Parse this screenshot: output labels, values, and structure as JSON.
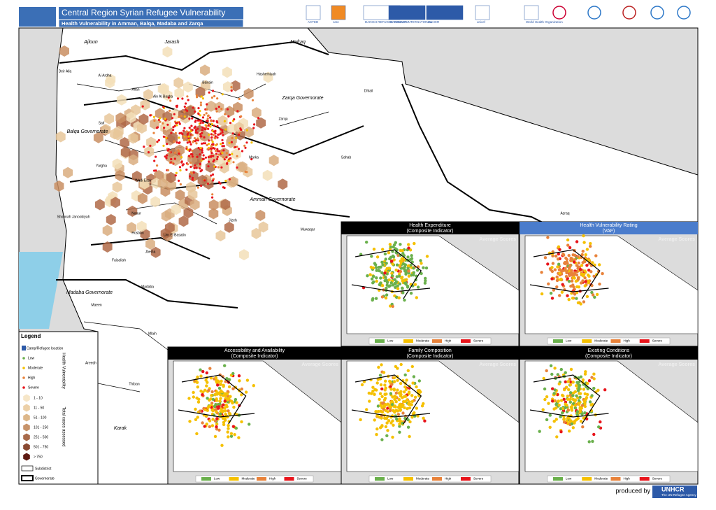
{
  "header": {
    "title": "Central Region Syrian Refugee Vulnerability",
    "subtitle": "Health Vulnerability in Amman, Balqa, Madaba and Zarqa"
  },
  "logos": [
    "ACTED",
    "care",
    "DANISH REFUGEE COUNCIL",
    "HANDICAP INTERNATIONAL",
    "UNHCR",
    "unicef",
    "World Health Organization"
  ],
  "places": [
    "Ajloun",
    "Jarash",
    "Mafraq",
    "Deir Alla",
    "Ai Ardha",
    "Allan",
    "Ain Al Basha",
    "Bairain",
    "Hashemiyah",
    "Zarqa Governorate",
    "Dhlail",
    "Salt",
    "Balqa Governorate",
    "Zarqa",
    "Yargha",
    "Sahab",
    "Marka",
    "Wadi Essir",
    "Amman Governorate",
    "Shoonah Janoobiyah",
    "Naour",
    "Hosban",
    "Um El Basatin",
    "Jizeh",
    "Muwaqar",
    "Azraq",
    "Faisaliah",
    "Jbeiha",
    "Madaba Governorate",
    "Maeen",
    "Madaba",
    "Mlaih",
    "Areedh",
    "Thiban",
    "Karak"
  ],
  "insets": [
    {
      "title": "Health Expenditure",
      "subtitle": "(Composite Indicator)",
      "scale_label": "Average Scores"
    },
    {
      "title": "Health Vulnerability Rating",
      "subtitle": "(VAF)",
      "scale_label": "Average Scores"
    },
    {
      "title": "Accessibility and Availability",
      "subtitle": "(Composite Indicator)",
      "scale_label": "Average Scores"
    },
    {
      "title": "Family Composition",
      "subtitle": "(Composite Indicator)",
      "scale_label": "Average Scores"
    },
    {
      "title": "Existing Conditions",
      "subtitle": "(Composite Indicator)",
      "scale_label": "Average Scores"
    }
  ],
  "levels": [
    "Low",
    "Moderate",
    "High",
    "Severe"
  ],
  "legend": {
    "title": "Legend",
    "camp": "Camp/Refugee location",
    "vulnerability_label": "Health Vulnerability",
    "case_label": "Total cases assessed",
    "case_bins": [
      "1 - 10",
      "11 - 50",
      "51 - 100",
      "101 - 250",
      "251 - 500",
      "501 - 750",
      "> 750"
    ],
    "subdistrict": "Subdistrict",
    "governorate": "Governorate"
  },
  "footer": {
    "produced_by": "produced by",
    "org": "UNHCR",
    "org_sub": "The UN Refugee Agency"
  }
}
